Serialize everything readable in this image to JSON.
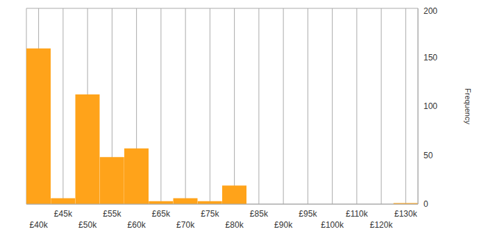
{
  "chart_data": {
    "type": "bar",
    "ylabel": "Frequency",
    "categories": [
      "£40k",
      "£45k",
      "£50k",
      "£55k",
      "£60k",
      "£65k",
      "£70k",
      "£75k",
      "£80k",
      "£85k",
      "£90k",
      "£95k",
      "£100k",
      "£110k",
      "£120k",
      "£130k"
    ],
    "values": [
      159,
      6,
      112,
      48,
      57,
      3,
      6,
      3,
      19,
      0,
      0,
      0,
      0,
      0,
      0,
      1
    ],
    "color": "#ffa31a",
    "ylim": [
      0,
      200
    ],
    "yticks": [
      0,
      50,
      100,
      150,
      200
    ],
    "grid": true
  }
}
